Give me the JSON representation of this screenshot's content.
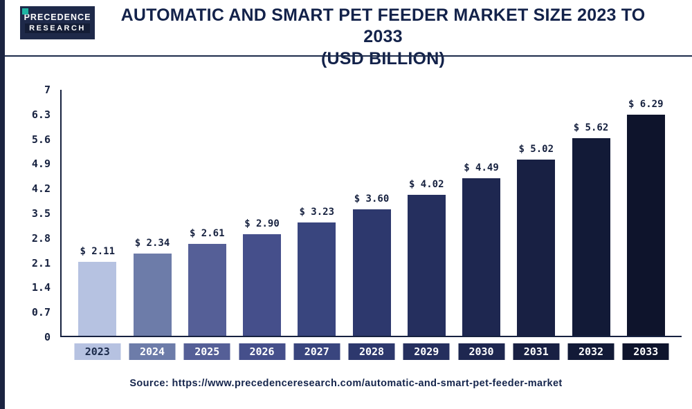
{
  "page": {
    "background": "#ffffff",
    "accent_navy": "#16213f",
    "accent_teal": "#1fb5a3"
  },
  "logo": {
    "line1": "PRECEDENCE",
    "line2": "RESEARCH"
  },
  "header": {
    "title_line1": "AUTOMATIC AND SMART PET FEEDER MARKET SIZE 2023 TO 2033",
    "title_line2": "(USD BILLION)"
  },
  "footer": {
    "source": "Source: https://www.precedenceresearch.com/automatic-and-smart-pet-feeder-market"
  },
  "chart_data": {
    "type": "bar",
    "title": "Automatic and Smart Pet Feeder Market Size 2023 to 2033 (USD Billion)",
    "categories": [
      "2023",
      "2024",
      "2025",
      "2026",
      "2027",
      "2028",
      "2029",
      "2030",
      "2031",
      "2032",
      "2033"
    ],
    "values": [
      2.11,
      2.34,
      2.61,
      2.9,
      3.23,
      3.6,
      4.02,
      4.49,
      5.02,
      5.62,
      6.29
    ],
    "value_labels": [
      "$ 2.11",
      "$ 2.34",
      "$ 2.61",
      "$ 2.90",
      "$ 3.23",
      "$ 3.60",
      "$ 4.02",
      "$ 4.49",
      "$ 5.02",
      "$ 5.62",
      "$ 6.29"
    ],
    "xlabel": "",
    "ylabel": "",
    "ylim": [
      0,
      7
    ],
    "y_ticks": [
      "0",
      "0.7",
      "1.4",
      "2.1",
      "2.8",
      "3.5",
      "4.2",
      "4.9",
      "5.6",
      "6.3",
      "7"
    ],
    "grid": false,
    "legend": "none",
    "bar_colors": [
      "#b6c2e1",
      "#6d7ca9",
      "#555f97",
      "#454f8b",
      "#39457e",
      "#2d386d",
      "#252f5e",
      "#1e2750",
      "#182043",
      "#121a37",
      "#0e142c"
    ],
    "axis_color": "#16213f",
    "first_label_text_color": "#1b2a4a",
    "label_text_color": "#ffffff"
  }
}
